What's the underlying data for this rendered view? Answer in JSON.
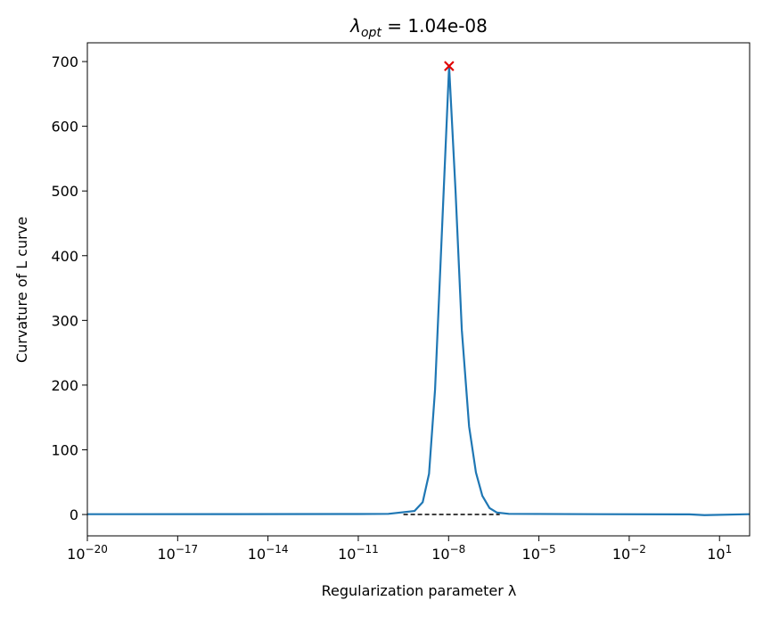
{
  "chart_data": {
    "type": "line",
    "title": {
      "symbol": "λ",
      "subscript": "opt",
      "text": " = 1.04e-08"
    },
    "x_label": "Regularization parameter λ",
    "y_label": "Curvature of L curve",
    "x_scale": "log",
    "xlim": [
      1e-20,
      100
    ],
    "ylim": [
      -33,
      729
    ],
    "xticks": [
      {
        "value": 1e-20,
        "label": "10−20"
      },
      {
        "value": 1e-17,
        "label": "10−17"
      },
      {
        "value": 1e-14,
        "label": "10−14"
      },
      {
        "value": 1e-11,
        "label": "10−11"
      },
      {
        "value": 1e-08,
        "label": "10−8"
      },
      {
        "value": 1e-05,
        "label": "10−5"
      },
      {
        "value": 0.01,
        "label": "10−2"
      },
      {
        "value": 10,
        "label": "101"
      }
    ],
    "yticks": [
      0,
      100,
      200,
      300,
      400,
      500,
      600,
      700
    ],
    "series": [
      {
        "color": "#1f77b4",
        "x": [
          1e-20,
          1e-15,
          1e-11,
          1e-10,
          7.4e-10,
          1.38e-09,
          2.24e-09,
          3.55e-09,
          1.04e-08,
          1.7e-08,
          2.75e-08,
          4.8e-08,
          8.1e-08,
          1.32e-07,
          2.29e-07,
          4e-07,
          1e-06,
          0.001,
          1,
          3.16,
          100
        ],
        "values": [
          0.5,
          0.6,
          0.8,
          1,
          5.5,
          19,
          63,
          193,
          693,
          500,
          285,
          136,
          65,
          29,
          10,
          3,
          1,
          0.5,
          0.2,
          -1,
          0.5
        ]
      }
    ],
    "optimum": {
      "x": 1.04e-08,
      "y": 693,
      "color": "#e00000"
    },
    "reference_line": {
      "y": 0,
      "xmin": 3.16e-10,
      "xmax": 5e-07,
      "color": "#000000"
    }
  }
}
